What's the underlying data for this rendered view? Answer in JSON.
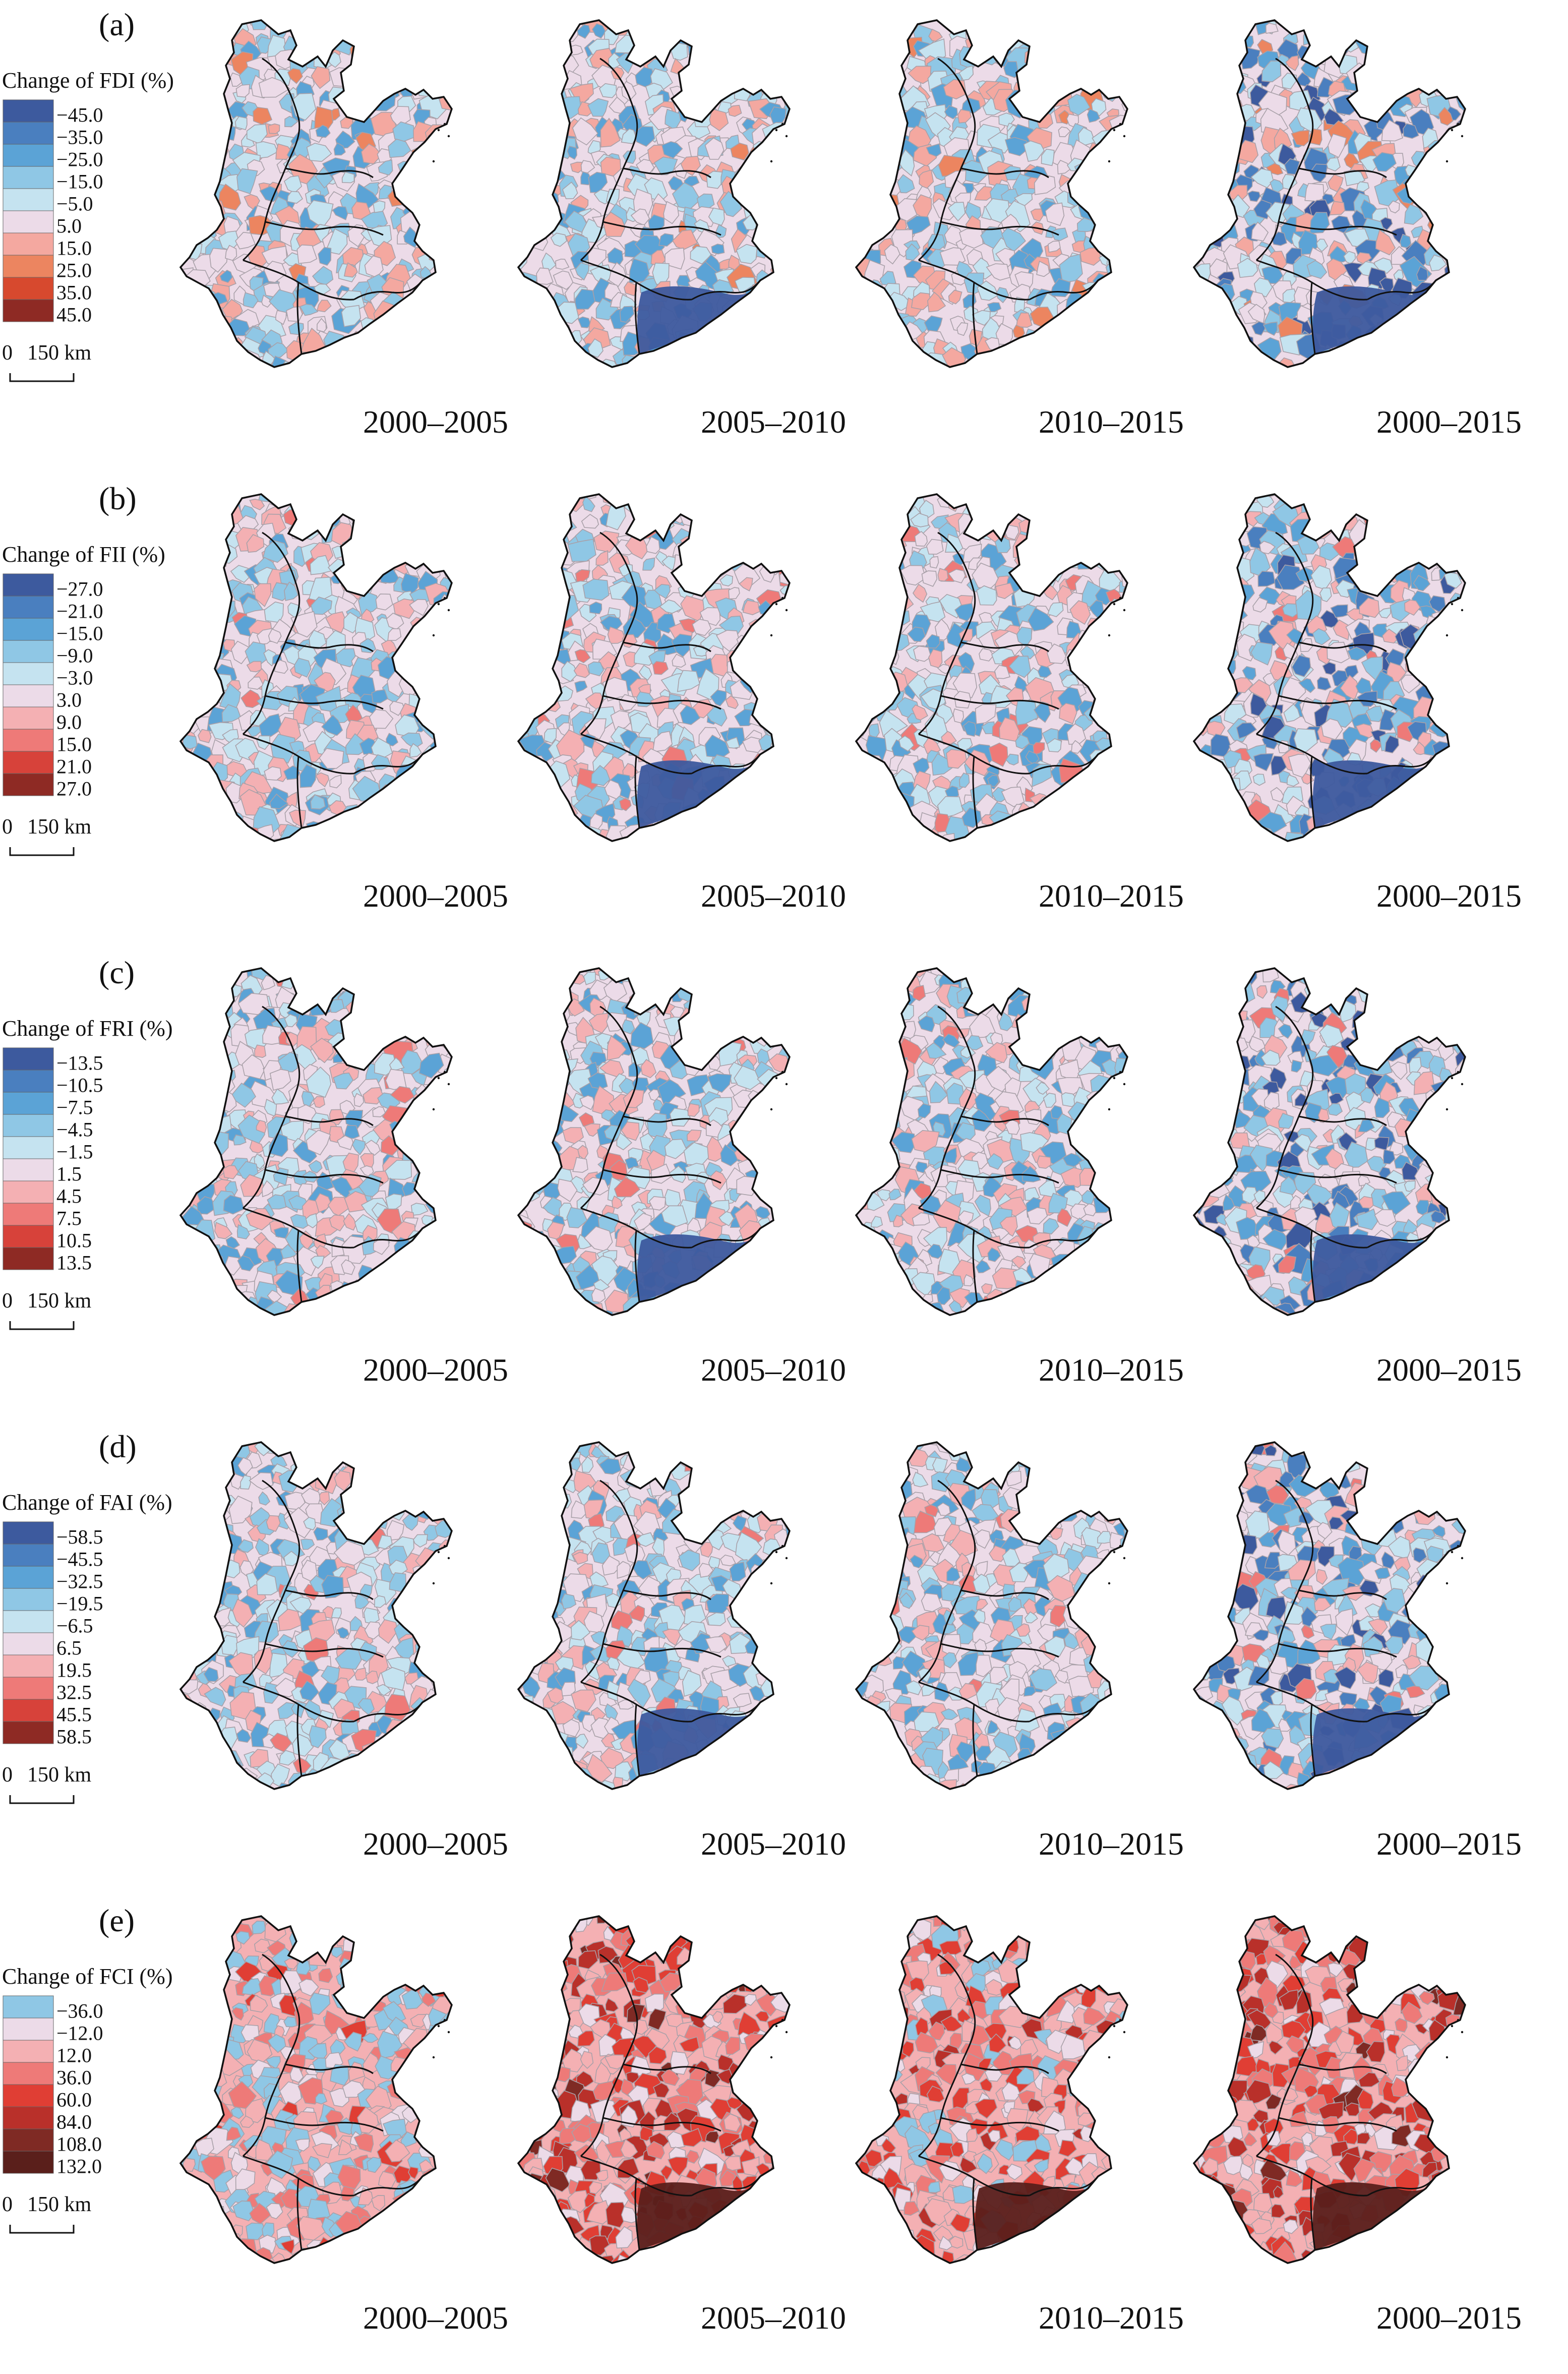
{
  "scale": {
    "zero": "0",
    "distance": "150 km"
  },
  "periods": [
    "2000–2005",
    "2005–2010",
    "2010–2015",
    "2000–2015"
  ],
  "panels": [
    {
      "label": "(a)",
      "legend_title": "Change of FDI (%)",
      "bins": [
        {
          "label": "−45.0",
          "color": "#3d5a9e"
        },
        {
          "label": "−35.0",
          "color": "#4a7fbf"
        },
        {
          "label": "−25.0",
          "color": "#5ba3d6"
        },
        {
          "label": "−15.0",
          "color": "#8fc7e5"
        },
        {
          "label": "−5.0",
          "color": "#c5e3f0"
        },
        {
          "label": "5.0",
          "color": "#ecdbe8"
        },
        {
          "label": "15.0",
          "color": "#f4a8a0"
        },
        {
          "label": "25.0",
          "color": "#ec8560"
        },
        {
          "label": "35.0",
          "color": "#d7492e"
        },
        {
          "label": "45.0",
          "color": "#8e2a24"
        }
      ]
    },
    {
      "label": "(b)",
      "legend_title": "Change of FII (%)",
      "bins": [
        {
          "label": "−27.0",
          "color": "#3d5a9e"
        },
        {
          "label": "−21.0",
          "color": "#4a7fbf"
        },
        {
          "label": "−15.0",
          "color": "#5ba3d6"
        },
        {
          "label": "−9.0",
          "color": "#8fc7e5"
        },
        {
          "label": "−3.0",
          "color": "#c5e3f0"
        },
        {
          "label": "3.0",
          "color": "#ecdbe8"
        },
        {
          "label": "9.0",
          "color": "#f4b0b3"
        },
        {
          "label": "15.0",
          "color": "#ee7a78"
        },
        {
          "label": "21.0",
          "color": "#d7423a"
        },
        {
          "label": "27.0",
          "color": "#8e2a24"
        }
      ]
    },
    {
      "label": "(c)",
      "legend_title": "Change of FRI (%)",
      "bins": [
        {
          "label": "−13.5",
          "color": "#3d5a9e"
        },
        {
          "label": "−10.5",
          "color": "#4a7fbf"
        },
        {
          "label": "−7.5",
          "color": "#5ba3d6"
        },
        {
          "label": "−4.5",
          "color": "#8fc7e5"
        },
        {
          "label": "−1.5",
          "color": "#c5e3f0"
        },
        {
          "label": "1.5",
          "color": "#ecdbe8"
        },
        {
          "label": "4.5",
          "color": "#f4b0b3"
        },
        {
          "label": "7.5",
          "color": "#ee7a78"
        },
        {
          "label": "10.5",
          "color": "#d7423a"
        },
        {
          "label": "13.5",
          "color": "#8e2a24"
        }
      ]
    },
    {
      "label": "(d)",
      "legend_title": "Change of FAI (%)",
      "bins": [
        {
          "label": "−58.5",
          "color": "#3d5a9e"
        },
        {
          "label": "−45.5",
          "color": "#4a7fbf"
        },
        {
          "label": "−32.5",
          "color": "#5ba3d6"
        },
        {
          "label": "−19.5",
          "color": "#8fc7e5"
        },
        {
          "label": "−6.5",
          "color": "#c5e3f0"
        },
        {
          "label": "6.5",
          "color": "#ecdbe8"
        },
        {
          "label": "19.5",
          "color": "#f4b0b3"
        },
        {
          "label": "32.5",
          "color": "#ee7a78"
        },
        {
          "label": "45.5",
          "color": "#d7423a"
        },
        {
          "label": "58.5",
          "color": "#8e2a24"
        }
      ]
    },
    {
      "label": "(e)",
      "legend_title": "Change of FCI (%)",
      "bins": [
        {
          "label": "−36.0",
          "color": "#8fc7e5"
        },
        {
          "label": "−12.0",
          "color": "#ecdbe8"
        },
        {
          "label": "12.0",
          "color": "#f4b0b3"
        },
        {
          "label": "36.0",
          "color": "#ee7a78"
        },
        {
          "label": "60.0",
          "color": "#e03e34"
        },
        {
          "label": "84.0",
          "color": "#b9302a"
        },
        {
          "label": "108.0",
          "color": "#7f2a24"
        },
        {
          "label": "132.0",
          "color": "#5a1f1b"
        }
      ]
    }
  ]
}
